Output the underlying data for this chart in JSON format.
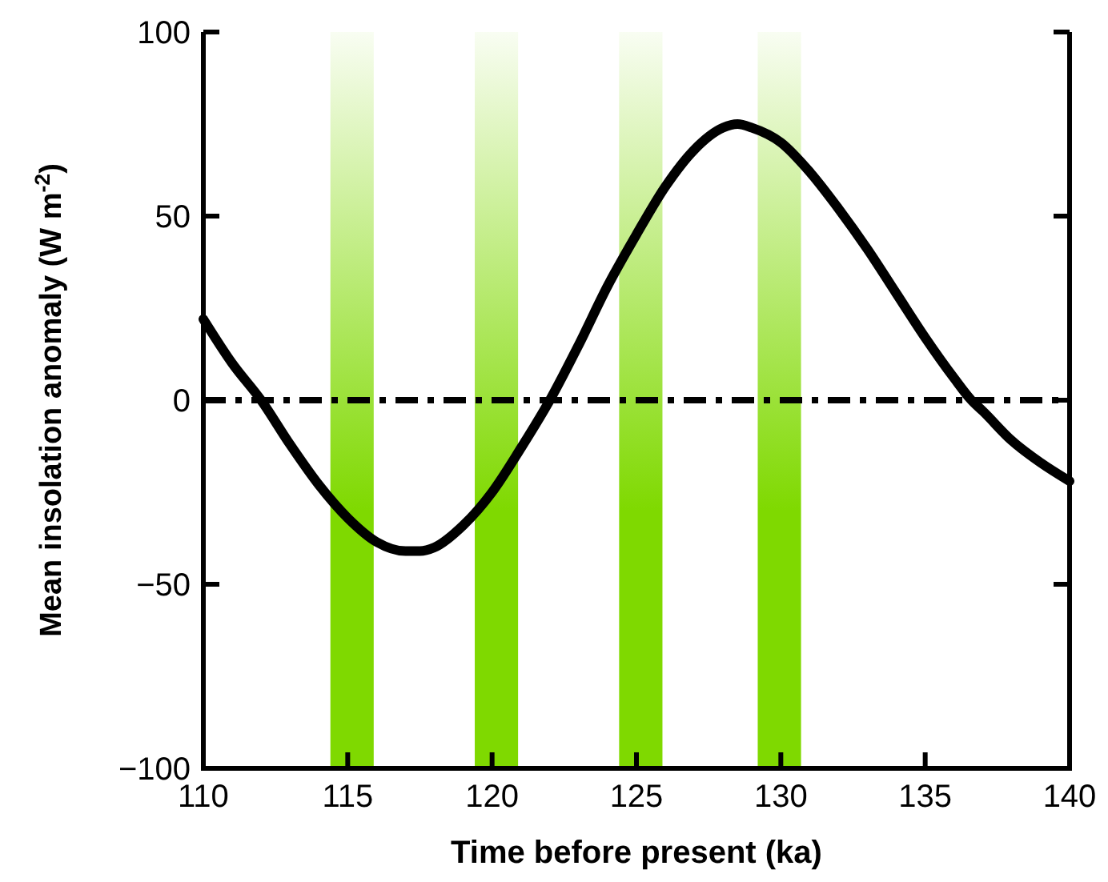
{
  "chart_data": {
    "type": "line",
    "xlabel": "Time before present (ka)",
    "ylabel": "Mean insolation anomaly (W m$^{-2}$)",
    "xlim": [
      110,
      140
    ],
    "xticks": [
      110,
      115,
      120,
      125,
      130,
      135,
      140
    ],
    "ylim": [
      -100,
      100
    ],
    "yticks": [
      -100,
      -50,
      0,
      50,
      100
    ],
    "grid": false,
    "line_style": "solid",
    "series": [
      {
        "color": "#000000",
        "x": [
          110,
          111,
          112,
          113,
          114,
          115,
          116,
          117,
          117.5,
          118,
          119,
          120,
          121,
          122,
          123,
          124,
          125,
          126,
          127,
          128,
          128.5,
          129,
          130,
          131,
          132,
          133,
          134,
          135,
          136,
          136.6,
          137,
          138,
          139,
          140
        ],
        "values": [
          22,
          10,
          0,
          -12,
          -23,
          -32,
          -38.5,
          -41,
          -41,
          -40,
          -34,
          -25,
          -13,
          0,
          15,
          31,
          45,
          58,
          68,
          74,
          75,
          74,
          70,
          62,
          52,
          41,
          29,
          17,
          6,
          0,
          -3,
          -11,
          -17,
          -22
        ]
      }
    ],
    "ref_lines": [
      {
        "axis": "y",
        "value": 0,
        "line_style": "dashed",
        "color": "#000000"
      }
    ],
    "bands": [
      {
        "axis": "x",
        "from": 114.4,
        "to": 115.9,
        "color": "#7fd900"
      },
      {
        "axis": "x",
        "from": 119.4,
        "to": 120.9,
        "color": "#7fd900"
      },
      {
        "axis": "x",
        "from": 124.4,
        "to": 125.9,
        "color": "#7fd900"
      },
      {
        "axis": "x",
        "from": 129.2,
        "to": 130.7,
        "color": "#7fd900"
      }
    ]
  }
}
